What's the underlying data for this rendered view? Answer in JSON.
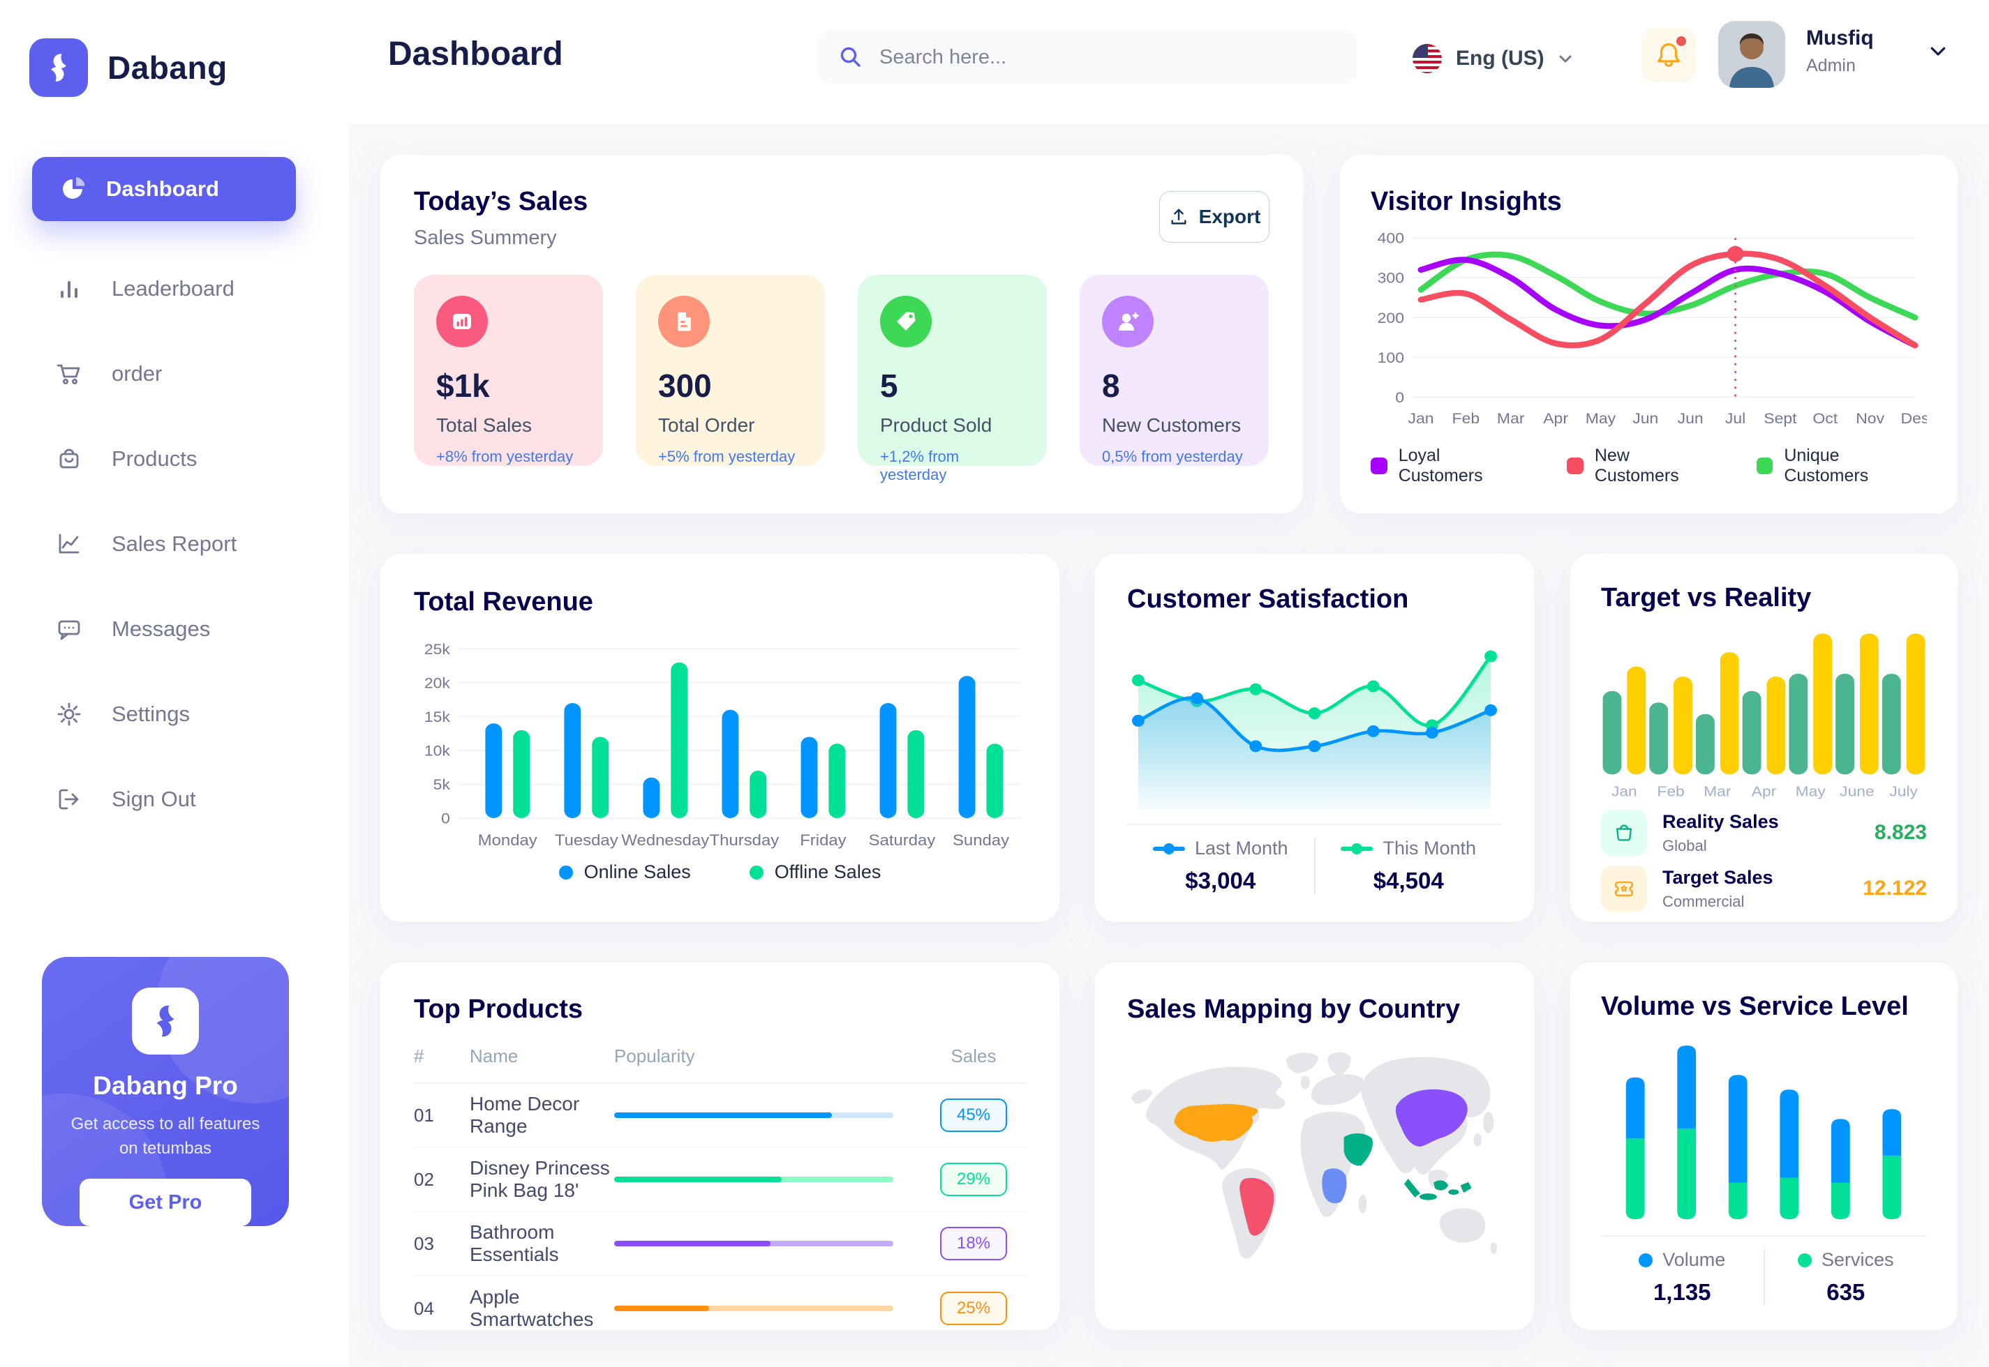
{
  "brand": {
    "name": "Dabang"
  },
  "header": {
    "title": "Dashboard",
    "search_placeholder": "Search here...",
    "language_label": "Eng (US)",
    "user_name": "Musfiq",
    "user_role": "Admin"
  },
  "sidebar": {
    "items": [
      {
        "label": "Dashboard",
        "active": true
      },
      {
        "label": "Leaderboard"
      },
      {
        "label": "order"
      },
      {
        "label": "Products"
      },
      {
        "label": "Sales Report"
      },
      {
        "label": "Messages"
      },
      {
        "label": "Settings"
      },
      {
        "label": "Sign Out"
      }
    ],
    "pro": {
      "title": "Dabang Pro",
      "description": "Get access to all features on tetumbas",
      "button_label": "Get Pro"
    }
  },
  "today_sales": {
    "title": "Today’s Sales",
    "subtitle": "Sales Summery",
    "export_label": "Export",
    "delta_color": "#4079ED",
    "cards": [
      {
        "value": "$1k",
        "label": "Total Sales",
        "delta": "+8% from yesterday",
        "bg": "#FFE2E5",
        "icon_bg": "#FA5A7D",
        "icon": "bar-chart-icon"
      },
      {
        "value": "300",
        "label": "Total Order",
        "delta": "+5% from yesterday",
        "bg": "#FFF4DE",
        "icon_bg": "#FF947A",
        "icon": "order-file-icon"
      },
      {
        "value": "5",
        "label": "Product Sold",
        "delta": "+1,2% from yesterday",
        "bg": "#DCFCE7",
        "icon_bg": "#3CD856",
        "icon": "tag-icon"
      },
      {
        "value": "8",
        "label": "New Customers",
        "delta": "0,5% from yesterday",
        "bg": "#F3E8FF",
        "icon_bg": "#BF83FF",
        "icon": "user-plus-icon"
      }
    ]
  },
  "visitor_insights": {
    "title": "Visitor Insights",
    "chart_data": {
      "type": "line",
      "x": [
        "Jan",
        "Feb",
        "Mar",
        "Apr",
        "May",
        "Jun",
        "Jun",
        "Jul",
        "Sept",
        "Oct",
        "Nov",
        "Des"
      ],
      "yticks": [
        0,
        100,
        200,
        300,
        400
      ],
      "ymax": 400,
      "grid": true,
      "legend_position": "bottom",
      "series": [
        {
          "name": "Loyal Customers",
          "color": "#A700FF",
          "values": [
            320,
            345,
            300,
            220,
            180,
            195,
            260,
            320,
            310,
            265,
            190,
            130
          ]
        },
        {
          "name": "New Customers",
          "color": "#F64E60",
          "values": [
            245,
            260,
            195,
            135,
            145,
            235,
            330,
            360,
            345,
            280,
            200,
            130
          ]
        },
        {
          "name": "Unique Customers",
          "color": "#3CD856",
          "values": [
            270,
            345,
            355,
            305,
            240,
            210,
            230,
            280,
            310,
            310,
            250,
            200
          ]
        }
      ],
      "highlight": {
        "x_index": 7,
        "series": "New Customers",
        "value": 360
      }
    }
  },
  "total_revenue": {
    "title": "Total Revenue",
    "chart_data": {
      "type": "bar",
      "categories": [
        "Monday",
        "Tuesday",
        "Wednesday",
        "Thursday",
        "Friday",
        "Saturday",
        "Sunday"
      ],
      "ytick_values": [
        0,
        5,
        10,
        15,
        20,
        25
      ],
      "ytick_labels": [
        "0",
        "5k",
        "10k",
        "15k",
        "20k",
        "25k"
      ],
      "ymax": 25,
      "ylabel": "",
      "grid": true,
      "legend_position": "bottom",
      "series": [
        {
          "name": "Online Sales",
          "color": "#0095FF",
          "values": [
            14,
            17,
            6,
            16,
            12,
            17,
            21
          ]
        },
        {
          "name": "Offline Sales",
          "color": "#00E096",
          "values": [
            13,
            12,
            23,
            7,
            11,
            13,
            11
          ]
        }
      ]
    }
  },
  "customer_satisfaction": {
    "title": "Customer Satisfaction",
    "chart_data": {
      "type": "area",
      "ymax": 100,
      "legend_position": "bottom",
      "series": [
        {
          "name": "Last Month",
          "color": "#0095FF",
          "total": "$3,004",
          "values": [
            45,
            60,
            28,
            28,
            38,
            37,
            52
          ]
        },
        {
          "name": "This Month",
          "color": "#00E096",
          "total": "$4,504",
          "values": [
            72,
            58,
            66,
            50,
            68,
            42,
            88
          ]
        }
      ]
    }
  },
  "target_vs_reality": {
    "title": "Target vs Reality",
    "chart_data": {
      "type": "bar",
      "categories": [
        "Jan",
        "Feb",
        "Mar",
        "Apr",
        "May",
        "June",
        "July"
      ],
      "ymax": 100,
      "grid": false,
      "series": [
        {
          "name": "Reality Sales",
          "color": "#4AB58E",
          "values": [
            58,
            50,
            42,
            58,
            70,
            70,
            70
          ]
        },
        {
          "name": "Target Sales",
          "color": "#FFCF00",
          "values": [
            75,
            68,
            85,
            68,
            98,
            98,
            98
          ]
        }
      ]
    },
    "legend": [
      {
        "label": "Reality Sales",
        "sublabel": "Global",
        "value": "8.823",
        "value_color": "#27AE60",
        "tile_bg": "#E2FFF3",
        "icon_color": "#00B087",
        "icon": "bag-icon"
      },
      {
        "label": "Target Sales",
        "sublabel": "Commercial",
        "value": "12.122",
        "value_color": "#FFA412",
        "tile_bg": "#FFF4DE",
        "icon_color": "#FFA412",
        "icon": "ticket-icon"
      }
    ]
  },
  "top_products": {
    "title": "Top Products",
    "headers": [
      "#",
      "Name",
      "Popularity",
      "Sales"
    ],
    "rows": [
      {
        "num": "01",
        "name": "Home Decor Range",
        "fill_pct": "78%",
        "percent": "45%",
        "color": "#0095FF",
        "track": "#CDE7FF",
        "badge_bg": "#F0F9FF"
      },
      {
        "num": "02",
        "name": "Disney Princess Pink Bag 18'",
        "fill_pct": "60%",
        "percent": "29%",
        "color": "#00E096",
        "track": "#8CFAC7",
        "badge_bg": "#F0FDF4"
      },
      {
        "num": "03",
        "name": "Bathroom Essentials",
        "fill_pct": "56%",
        "percent": "18%",
        "color": "#884DFF",
        "track": "#C5A8FF",
        "badge_bg": "#F9F5FF"
      },
      {
        "num": "04",
        "name": "Apple Smartwatches",
        "fill_pct": "34%",
        "percent": "25%",
        "color": "#FF8F0D",
        "track": "#FFD5A4",
        "badge_bg": "#FFF8EC"
      }
    ]
  },
  "sales_mapping": {
    "title": "Sales Mapping by Country",
    "land_color": "#E4E6E9",
    "countries": [
      {
        "name": "United States",
        "color": "#FFA412"
      },
      {
        "name": "Brazil",
        "color": "#F4516C"
      },
      {
        "name": "DR Congo",
        "color": "#6D8DF6"
      },
      {
        "name": "Saudi Arabia",
        "color": "#00B087"
      },
      {
        "name": "China",
        "color": "#8950FC"
      },
      {
        "name": "Indonesia",
        "color": "#00A982"
      }
    ]
  },
  "volume_service": {
    "title": "Volume vs Service Level",
    "chart_data": {
      "type": "stacked-bar",
      "legend_position": "bottom",
      "series": [
        {
          "name": "Volume",
          "color": "#0095FF",
          "total": "1,135",
          "values": [
            25,
            34,
            44,
            36,
            26,
            19
          ]
        },
        {
          "name": "Services",
          "color": "#00E096",
          "total": "635",
          "values": [
            33,
            37,
            15,
            17,
            15,
            26
          ]
        }
      ]
    }
  }
}
